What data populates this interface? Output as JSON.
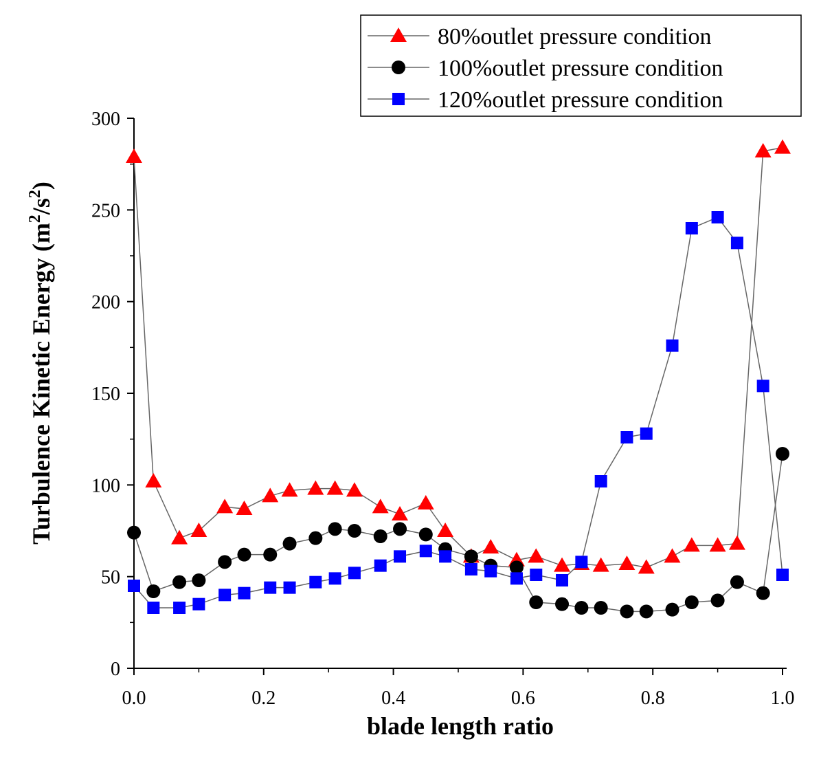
{
  "chart_data": {
    "type": "line",
    "title": "",
    "xlabel": "blade length ratio",
    "ylabel": "Turbulence Kinetic Energy (m2/s2)",
    "ylabel_parts": {
      "main": "Turbulence Kinetic Energy (m",
      "sup1": "2",
      "mid": "/s",
      "sup2": "2",
      "end": ")"
    },
    "xlim": [
      0.0,
      1.0
    ],
    "ylim": [
      0,
      300
    ],
    "xticks": [
      0.0,
      0.2,
      0.4,
      0.6,
      0.8,
      1.0
    ],
    "xtick_labels": [
      "0.0",
      "0.2",
      "0.4",
      "0.6",
      "0.8",
      "1.0"
    ],
    "yticks": [
      0,
      50,
      100,
      150,
      200,
      250,
      300
    ],
    "ytick_labels": [
      "0",
      "50",
      "100",
      "150",
      "200",
      "250",
      "300"
    ],
    "grid": false,
    "legend_position": "top-right",
    "x": [
      0.0,
      0.03,
      0.07,
      0.1,
      0.14,
      0.17,
      0.21,
      0.24,
      0.28,
      0.31,
      0.34,
      0.38,
      0.41,
      0.45,
      0.48,
      0.52,
      0.55,
      0.59,
      0.62,
      0.66,
      0.69,
      0.72,
      0.76,
      0.79,
      0.83,
      0.86,
      0.9,
      0.93,
      0.97,
      1.0
    ],
    "series": [
      {
        "name": "80%outlet pressure condition",
        "marker": "triangle",
        "color": "#ff0000",
        "values": [
          279,
          102,
          71,
          75,
          88,
          87,
          94,
          97,
          98,
          98,
          97,
          88,
          84,
          90,
          75,
          61,
          66,
          59,
          61,
          56,
          57,
          56,
          57,
          55,
          61,
          67,
          67,
          68,
          282,
          284
        ]
      },
      {
        "name": "100%outlet pressure condition",
        "marker": "circle",
        "color": "#000000",
        "values": [
          74,
          42,
          47,
          48,
          58,
          62,
          62,
          68,
          71,
          76,
          75,
          72,
          76,
          73,
          65,
          61,
          56,
          55,
          36,
          35,
          33,
          33,
          31,
          31,
          32,
          36,
          37,
          47,
          41,
          117
        ]
      },
      {
        "name": "120%outlet pressure condition",
        "marker": "square",
        "color": "#0000ff",
        "values": [
          45,
          33,
          33,
          35,
          40,
          41,
          44,
          44,
          47,
          49,
          52,
          56,
          61,
          64,
          61,
          54,
          53,
          49,
          51,
          48,
          58,
          102,
          126,
          128,
          176,
          240,
          246,
          232,
          154,
          51
        ]
      }
    ]
  }
}
